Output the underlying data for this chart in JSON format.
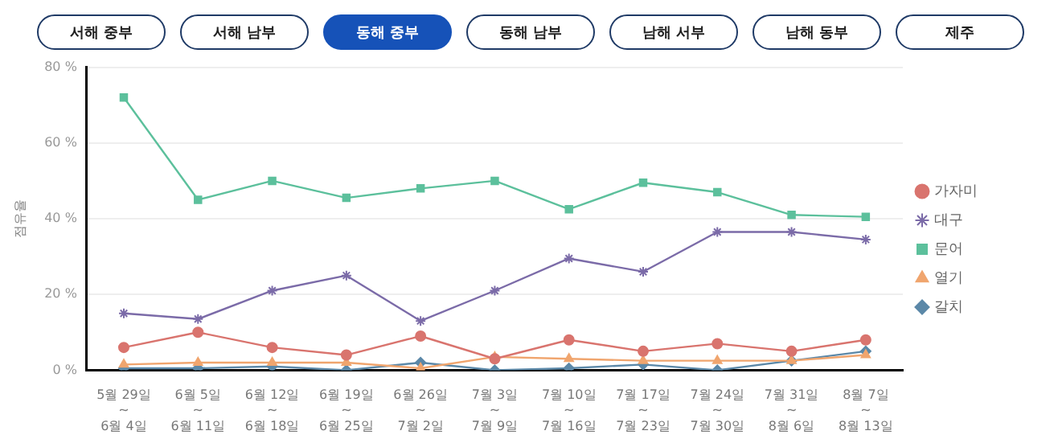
{
  "chart_data": {
    "type": "line",
    "ylabel": "점유율",
    "annotations": [
      "서해 중부",
      "서해 남부",
      "동해 중부",
      "동해 남부",
      "남해 서부",
      "남해 동부",
      "제주"
    ],
    "categories": [
      "5월 29일\n~\n6월 4일",
      "6월 5일\n~\n6월 11일",
      "6월 12일\n~\n6월 18일",
      "6월 19일\n~\n6월 25일",
      "6월 26일\n~\n7월 2일",
      "7월 3일\n~\n7월 9일",
      "7월 10일\n~\n7월 16일",
      "7월 17일\n~\n7월 23일",
      "7월 24일\n~\n7월 30일",
      "7월 31일\n~\n8월 6일",
      "8월 7일\n~\n8월 13일"
    ],
    "series": [
      {
        "name": "가자미",
        "color": "#d9746e",
        "marker": "circle",
        "values": [
          6,
          10,
          6,
          4,
          9,
          3,
          8,
          5,
          7,
          5,
          8
        ]
      },
      {
        "name": "대구",
        "color": "#7b6ba8",
        "marker": "cross",
        "values": [
          15,
          13.5,
          21,
          25,
          13,
          21,
          29.5,
          26,
          36.5,
          36.5,
          34.5
        ]
      },
      {
        "name": "문어",
        "color": "#5cc09c",
        "marker": "square",
        "values": [
          72,
          45,
          50,
          45.5,
          48,
          50,
          42.5,
          49.5,
          47,
          41,
          40.5
        ]
      },
      {
        "name": "열기",
        "color": "#f0a56e",
        "marker": "triangle",
        "values": [
          1.5,
          2,
          2,
          2,
          0.5,
          3.5,
          3,
          2.5,
          2.5,
          2.5,
          4
        ]
      },
      {
        "name": "갈치",
        "color": "#5b88a8",
        "marker": "diamond",
        "values": [
          0.5,
          0.5,
          1,
          0,
          2,
          0,
          0.5,
          1.5,
          0,
          2.5,
          5
        ]
      }
    ],
    "ylim": [
      0,
      80
    ],
    "yticks": [
      {
        "value": 0,
        "label": "0 %"
      },
      {
        "value": 20,
        "label": "20 %"
      },
      {
        "value": 40,
        "label": "40 %"
      },
      {
        "value": 60,
        "label": "60 %"
      },
      {
        "value": 80,
        "label": "80 %"
      }
    ],
    "grid": "y",
    "legend": "right",
    "line_style": "solid"
  }
}
